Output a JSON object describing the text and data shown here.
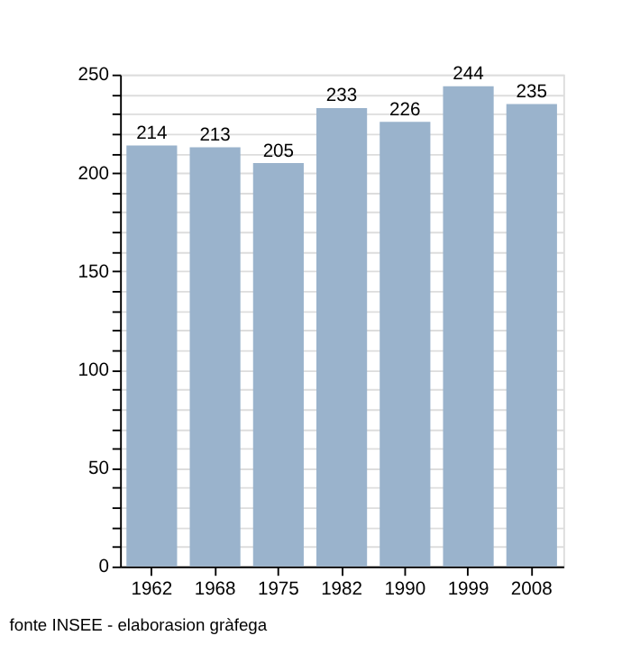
{
  "chart_data": {
    "type": "bar",
    "categories": [
      "1962",
      "1968",
      "1975",
      "1982",
      "1990",
      "1999",
      "2008"
    ],
    "values": [
      214,
      213,
      205,
      233,
      226,
      244,
      235
    ],
    "color": "#9ab3cc",
    "ylim": [
      0,
      250
    ],
    "yticks": [
      0,
      {
        "value": 10,
        "label": null
      },
      {
        "value": 20,
        "label": null
      },
      {
        "value": 30,
        "label": null
      },
      {
        "value": 40,
        "label": null
      },
      50,
      {
        "value": 60,
        "label": null
      },
      {
        "value": 70,
        "label": null
      },
      {
        "value": 80,
        "label": null
      },
      {
        "value": 90,
        "label": null
      },
      100,
      {
        "value": 110,
        "label": null
      },
      {
        "value": 120,
        "label": null
      },
      {
        "value": 130,
        "label": null
      },
      {
        "value": 140,
        "label": null
      },
      150,
      {
        "value": 160,
        "label": null
      },
      {
        "value": 170,
        "label": null
      },
      {
        "value": 180,
        "label": null
      },
      {
        "value": 190,
        "label": null
      },
      200,
      {
        "value": 210,
        "label": null
      },
      {
        "value": 220,
        "label": null
      },
      {
        "value": 230,
        "label": null
      },
      {
        "value": 240,
        "label": null
      },
      250
    ],
    "grid": "y",
    "data_labels": true,
    "annotations": [
      "fonte INSEE - elaborasion gràfega"
    ]
  }
}
